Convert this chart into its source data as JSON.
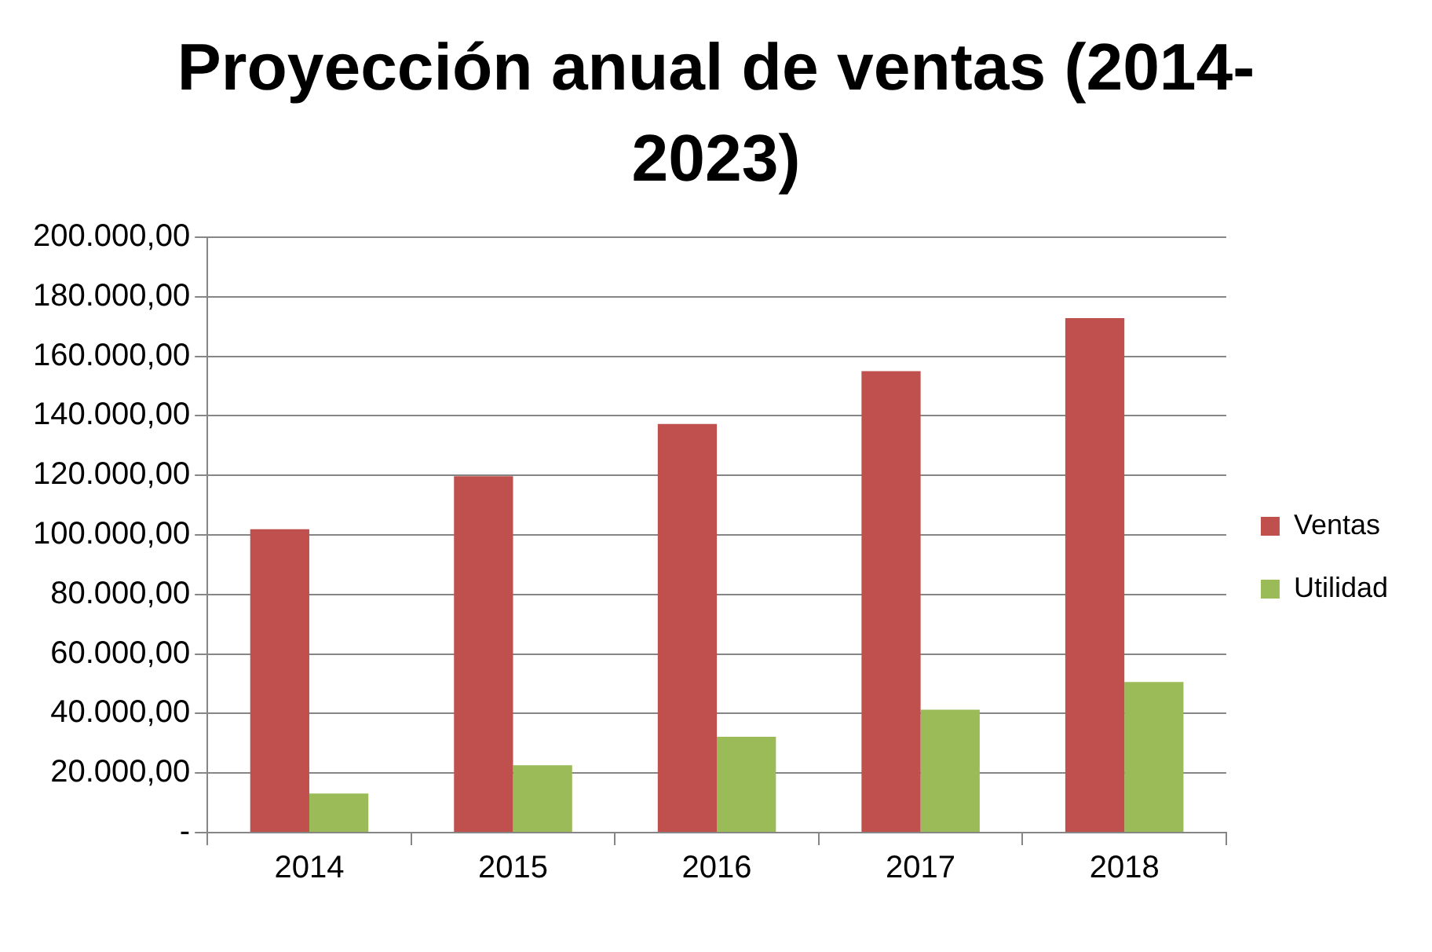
{
  "chart_data": {
    "type": "bar",
    "title": "Proyección anual de ventas (2014-2023)",
    "categories": [
      "2014",
      "2015",
      "2016",
      "2017",
      "2018"
    ],
    "series": [
      {
        "name": "Ventas",
        "color": "#c0504d",
        "values": [
          101900,
          119700,
          137300,
          155000,
          172800
        ]
      },
      {
        "name": "Utilidad",
        "color": "#9bbb59",
        "values": [
          13100,
          22600,
          32200,
          41300,
          50600
        ]
      }
    ],
    "ylim": [
      0,
      200000
    ],
    "yticks": [
      {
        "value": 0,
        "label": "-"
      },
      {
        "value": 20000,
        "label": "20.000,00"
      },
      {
        "value": 40000,
        "label": "40.000,00"
      },
      {
        "value": 60000,
        "label": "60.000,00"
      },
      {
        "value": 80000,
        "label": "80.000,00"
      },
      {
        "value": 100000,
        "label": "100.000,00"
      },
      {
        "value": 120000,
        "label": "120.000,00"
      },
      {
        "value": 140000,
        "label": "140.000,00"
      },
      {
        "value": 160000,
        "label": "160.000,00"
      },
      {
        "value": 180000,
        "label": "180.000,00"
      },
      {
        "value": 200000,
        "label": "200.000,00"
      }
    ],
    "grid": "y",
    "legend": "right"
  }
}
